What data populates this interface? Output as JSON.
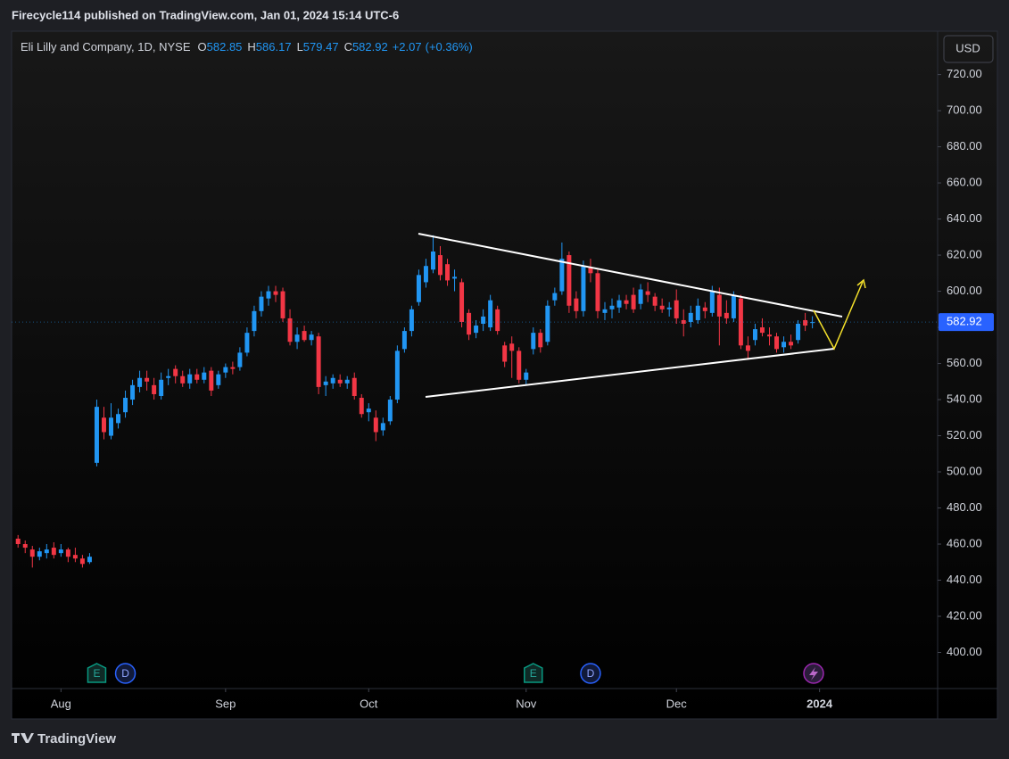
{
  "chart_data": {
    "type": "candlestick",
    "header": "Firecycle114 published on TradingView.com, Jan 01, 2024 15:14 UTC-6",
    "symbol": "Eli Lilly and Company, 1D, NYSE",
    "ohlc_keys": [
      "O",
      "H",
      "L",
      "C"
    ],
    "change": "+2.07",
    "change_pct": "(+0.36%)",
    "currency": "USD",
    "brand": "TradingView",
    "events": [
      "E",
      "D",
      "E",
      "D"
    ],
    "up_color": "#2196f3",
    "down_color": "#f23645",
    "candles": [
      {
        "o": 463,
        "h": 465,
        "l": 458,
        "c": 460
      },
      {
        "o": 460,
        "h": 462,
        "l": 455,
        "c": 458
      },
      {
        "o": 457,
        "h": 459,
        "l": 447,
        "c": 453
      },
      {
        "o": 453,
        "h": 458,
        "l": 451,
        "c": 456
      },
      {
        "o": 455,
        "h": 460,
        "l": 452,
        "c": 457
      },
      {
        "o": 458,
        "h": 461,
        "l": 452,
        "c": 454
      },
      {
        "o": 455,
        "h": 460,
        "l": 453,
        "c": 457
      },
      {
        "o": 457,
        "h": 458,
        "l": 450,
        "c": 453
      },
      {
        "o": 454,
        "h": 458,
        "l": 450,
        "c": 452
      },
      {
        "o": 452,
        "h": 454,
        "l": 447,
        "c": 449
      },
      {
        "o": 450,
        "h": 455,
        "l": 449,
        "c": 453
      },
      {
        "o": 505,
        "h": 540,
        "l": 503,
        "c": 536
      },
      {
        "o": 530,
        "h": 536,
        "l": 518,
        "c": 522
      },
      {
        "o": 520,
        "h": 538,
        "l": 518,
        "c": 530
      },
      {
        "o": 527,
        "h": 535,
        "l": 524,
        "c": 532
      },
      {
        "o": 533,
        "h": 545,
        "l": 530,
        "c": 541
      },
      {
        "o": 540,
        "h": 551,
        "l": 537,
        "c": 548
      },
      {
        "o": 547,
        "h": 556,
        "l": 544,
        "c": 552
      },
      {
        "o": 552,
        "h": 556,
        "l": 545,
        "c": 550
      },
      {
        "o": 548,
        "h": 552,
        "l": 540,
        "c": 543
      },
      {
        "o": 542,
        "h": 555,
        "l": 540,
        "c": 551
      },
      {
        "o": 552,
        "h": 557,
        "l": 548,
        "c": 553
      },
      {
        "o": 557,
        "h": 559,
        "l": 549,
        "c": 553
      },
      {
        "o": 553,
        "h": 556,
        "l": 547,
        "c": 549
      },
      {
        "o": 549,
        "h": 557,
        "l": 546,
        "c": 554
      },
      {
        "o": 554,
        "h": 557,
        "l": 549,
        "c": 551
      },
      {
        "o": 551,
        "h": 558,
        "l": 549,
        "c": 555
      },
      {
        "o": 556,
        "h": 558,
        "l": 542,
        "c": 545
      },
      {
        "o": 548,
        "h": 556,
        "l": 546,
        "c": 554
      },
      {
        "o": 555,
        "h": 560,
        "l": 552,
        "c": 558
      },
      {
        "o": 558,
        "h": 561,
        "l": 554,
        "c": 557
      },
      {
        "o": 558,
        "h": 569,
        "l": 556,
        "c": 566
      },
      {
        "o": 566,
        "h": 580,
        "l": 564,
        "c": 577
      },
      {
        "o": 578,
        "h": 592,
        "l": 575,
        "c": 589
      },
      {
        "o": 589,
        "h": 600,
        "l": 586,
        "c": 597
      },
      {
        "o": 596,
        "h": 603,
        "l": 592,
        "c": 600
      },
      {
        "o": 600,
        "h": 603,
        "l": 594,
        "c": 598
      },
      {
        "o": 600,
        "h": 602,
        "l": 583,
        "c": 585
      },
      {
        "o": 585,
        "h": 590,
        "l": 570,
        "c": 572
      },
      {
        "o": 572,
        "h": 580,
        "l": 568,
        "c": 576
      },
      {
        "o": 578,
        "h": 581,
        "l": 572,
        "c": 573
      },
      {
        "o": 573,
        "h": 578,
        "l": 570,
        "c": 576
      },
      {
        "o": 575,
        "h": 577,
        "l": 543,
        "c": 547
      },
      {
        "o": 548,
        "h": 553,
        "l": 542,
        "c": 550
      },
      {
        "o": 549,
        "h": 554,
        "l": 546,
        "c": 552
      },
      {
        "o": 551,
        "h": 554,
        "l": 547,
        "c": 549
      },
      {
        "o": 549,
        "h": 553,
        "l": 546,
        "c": 551
      },
      {
        "o": 552,
        "h": 555,
        "l": 540,
        "c": 542
      },
      {
        "o": 541,
        "h": 543,
        "l": 530,
        "c": 532
      },
      {
        "o": 533,
        "h": 538,
        "l": 528,
        "c": 535
      },
      {
        "o": 530,
        "h": 534,
        "l": 517,
        "c": 522
      },
      {
        "o": 523,
        "h": 530,
        "l": 520,
        "c": 527
      },
      {
        "o": 528,
        "h": 542,
        "l": 526,
        "c": 540
      },
      {
        "o": 540,
        "h": 570,
        "l": 538,
        "c": 567
      },
      {
        "o": 568,
        "h": 580,
        "l": 566,
        "c": 578
      },
      {
        "o": 578,
        "h": 592,
        "l": 575,
        "c": 590
      },
      {
        "o": 594,
        "h": 612,
        "l": 592,
        "c": 609
      },
      {
        "o": 605,
        "h": 618,
        "l": 602,
        "c": 614
      },
      {
        "o": 612,
        "h": 631,
        "l": 610,
        "c": 622
      },
      {
        "o": 620,
        "h": 625,
        "l": 606,
        "c": 609
      },
      {
        "o": 615,
        "h": 618,
        "l": 603,
        "c": 606
      },
      {
        "o": 607,
        "h": 612,
        "l": 600,
        "c": 608
      },
      {
        "o": 605,
        "h": 607,
        "l": 580,
        "c": 583
      },
      {
        "o": 588,
        "h": 590,
        "l": 573,
        "c": 576
      },
      {
        "o": 577,
        "h": 584,
        "l": 574,
        "c": 581
      },
      {
        "o": 582,
        "h": 590,
        "l": 578,
        "c": 586
      },
      {
        "o": 580,
        "h": 598,
        "l": 578,
        "c": 595
      },
      {
        "o": 590,
        "h": 592,
        "l": 576,
        "c": 578
      },
      {
        "o": 570,
        "h": 572,
        "l": 558,
        "c": 561
      },
      {
        "o": 571,
        "h": 575,
        "l": 552,
        "c": 567
      },
      {
        "o": 567,
        "h": 569,
        "l": 549,
        "c": 551
      },
      {
        "o": 551,
        "h": 557,
        "l": 548,
        "c": 555
      },
      {
        "o": 568,
        "h": 580,
        "l": 565,
        "c": 577
      },
      {
        "o": 577,
        "h": 579,
        "l": 566,
        "c": 569
      },
      {
        "o": 572,
        "h": 595,
        "l": 570,
        "c": 592
      },
      {
        "o": 595,
        "h": 602,
        "l": 592,
        "c": 599
      },
      {
        "o": 600,
        "h": 627,
        "l": 598,
        "c": 618
      },
      {
        "o": 620,
        "h": 622,
        "l": 588,
        "c": 592
      },
      {
        "o": 596,
        "h": 600,
        "l": 585,
        "c": 589
      },
      {
        "o": 589,
        "h": 617,
        "l": 586,
        "c": 614
      },
      {
        "o": 613,
        "h": 618,
        "l": 605,
        "c": 610
      },
      {
        "o": 610,
        "h": 612,
        "l": 585,
        "c": 589
      },
      {
        "o": 588,
        "h": 594,
        "l": 584,
        "c": 590
      },
      {
        "o": 590,
        "h": 596,
        "l": 585,
        "c": 592
      },
      {
        "o": 591,
        "h": 598,
        "l": 588,
        "c": 595
      },
      {
        "o": 595,
        "h": 598,
        "l": 590,
        "c": 593
      },
      {
        "o": 598,
        "h": 602,
        "l": 588,
        "c": 590
      },
      {
        "o": 593,
        "h": 604,
        "l": 590,
        "c": 601
      },
      {
        "o": 600,
        "h": 605,
        "l": 594,
        "c": 598
      },
      {
        "o": 597,
        "h": 599,
        "l": 589,
        "c": 592
      },
      {
        "o": 592,
        "h": 596,
        "l": 588,
        "c": 590
      },
      {
        "o": 590,
        "h": 594,
        "l": 586,
        "c": 591
      },
      {
        "o": 595,
        "h": 601,
        "l": 582,
        "c": 585
      },
      {
        "o": 584,
        "h": 590,
        "l": 575,
        "c": 582
      },
      {
        "o": 583,
        "h": 592,
        "l": 580,
        "c": 588
      },
      {
        "o": 584,
        "h": 596,
        "l": 582,
        "c": 592
      },
      {
        "o": 591,
        "h": 594,
        "l": 585,
        "c": 589
      },
      {
        "o": 588,
        "h": 603,
        "l": 586,
        "c": 600
      },
      {
        "o": 598,
        "h": 602,
        "l": 570,
        "c": 586
      },
      {
        "o": 588,
        "h": 595,
        "l": 582,
        "c": 585
      },
      {
        "o": 585,
        "h": 600,
        "l": 583,
        "c": 598
      },
      {
        "o": 596,
        "h": 598,
        "l": 568,
        "c": 570
      },
      {
        "o": 570,
        "h": 575,
        "l": 562,
        "c": 567
      },
      {
        "o": 573,
        "h": 582,
        "l": 570,
        "c": 579
      },
      {
        "o": 580,
        "h": 585,
        "l": 575,
        "c": 577
      },
      {
        "o": 576,
        "h": 580,
        "l": 570,
        "c": 575
      },
      {
        "o": 575,
        "h": 577,
        "l": 566,
        "c": 568
      },
      {
        "o": 569,
        "h": 575,
        "l": 566,
        "c": 572
      },
      {
        "o": 572,
        "h": 576,
        "l": 568,
        "c": 570
      },
      {
        "o": 573,
        "h": 584,
        "l": 571,
        "c": 582
      },
      {
        "o": 584,
        "h": 588,
        "l": 578,
        "c": 581
      },
      {
        "o": 582.85,
        "h": 586.17,
        "l": 579.47,
        "c": 582.92
      }
    ],
    "xlim": [
      -0.9,
      128.5
    ],
    "xticks": [
      {
        "value": 6,
        "label": "Aug"
      },
      {
        "value": 29,
        "label": "Sep"
      },
      {
        "value": 49,
        "label": "Oct"
      },
      {
        "value": 71,
        "label": "Nov"
      },
      {
        "value": 92,
        "label": "Dec"
      },
      {
        "value": 112,
        "label": "2024"
      }
    ],
    "ylim": [
      380,
      744
    ],
    "yticks": [
      {
        "value": 400,
        "label": "400.00"
      },
      {
        "value": 420,
        "label": "420.00"
      },
      {
        "value": 440,
        "label": "440.00"
      },
      {
        "value": 460,
        "label": "460.00"
      },
      {
        "value": 480,
        "label": "480.00"
      },
      {
        "value": 500,
        "label": "500.00"
      },
      {
        "value": 520,
        "label": "520.00"
      },
      {
        "value": 540,
        "label": "540.00"
      },
      {
        "value": 560,
        "label": "560.00"
      },
      {
        "value": 580,
        "label": "580.00"
      },
      {
        "value": 600,
        "label": "600.00"
      },
      {
        "value": 620,
        "label": "620.00"
      },
      {
        "value": 640,
        "label": "640.00"
      },
      {
        "value": 660,
        "label": "660.00"
      },
      {
        "value": 680,
        "label": "680.00"
      },
      {
        "value": 700,
        "label": "700.00"
      },
      {
        "value": 720,
        "label": "720.00"
      }
    ],
    "grid": false
  }
}
